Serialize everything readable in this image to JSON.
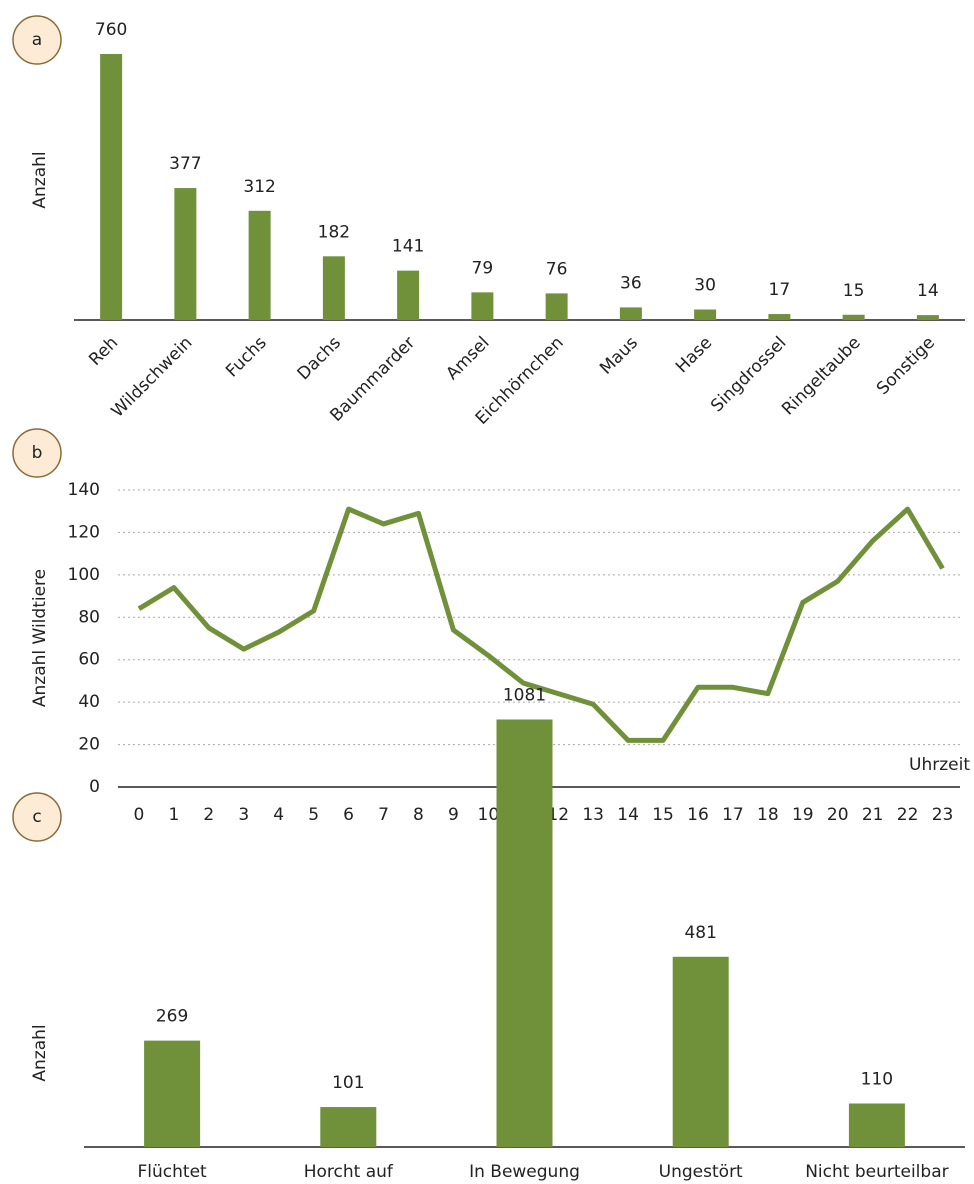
{
  "chart_data": [
    {
      "type": "bar",
      "panel_label": "a",
      "y_label": "Anzahl",
      "color": "#70913a",
      "categories": [
        "Reh",
        "Wildschwein",
        "Fuchs",
        "Dachs",
        "Baummarder",
        "Amsel",
        "Eichhörnchen",
        "Maus",
        "Hase",
        "Singdrossel",
        "Ringeltaube",
        "Sonstige"
      ],
      "values": [
        760,
        377,
        312,
        182,
        141,
        79,
        76,
        36,
        30,
        17,
        15,
        14
      ],
      "ylim": [
        0,
        800
      ]
    },
    {
      "type": "line",
      "panel_label": "b",
      "y_label": "Anzahl Wildtiere",
      "x_label": "Uhrzeit",
      "color": "#70913a",
      "grid": true,
      "x": [
        0,
        1,
        2,
        3,
        4,
        5,
        6,
        7,
        8,
        9,
        10,
        11,
        12,
        13,
        14,
        15,
        16,
        17,
        18,
        19,
        20,
        21,
        22,
        23
      ],
      "values": [
        84,
        94,
        75,
        65,
        73,
        83,
        131,
        124,
        129,
        74,
        62,
        49,
        44,
        39,
        22,
        22,
        47,
        47,
        44,
        87,
        97,
        116,
        131,
        103
      ],
      "xlim": [
        -0.6,
        23.5
      ],
      "ylim": [
        0,
        140
      ],
      "yticks": [
        0,
        20,
        40,
        60,
        80,
        100,
        120,
        140
      ]
    },
    {
      "type": "bar",
      "panel_label": "c",
      "y_label": "Anzahl",
      "color": "#70913a",
      "categories": [
        "Flüchtet",
        "Horcht auf",
        "In Bewegung",
        "Ungestört",
        "Nicht beurteilbar"
      ],
      "values": [
        269,
        101,
        1081,
        481,
        110
      ],
      "ylim": [
        0,
        1100
      ]
    }
  ]
}
